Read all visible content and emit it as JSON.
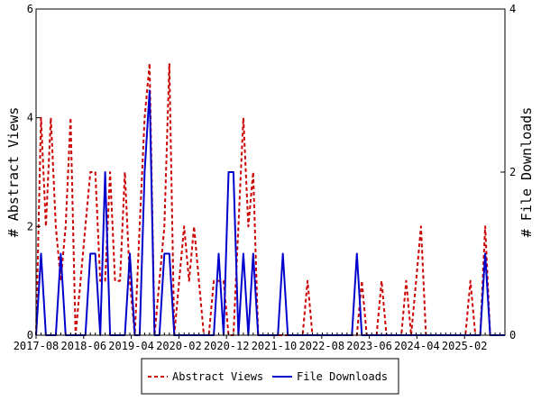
{
  "chart_data": {
    "type": "line",
    "x_tick_labels": [
      "2017-08",
      "2018-06",
      "2019-04",
      "2020-02",
      "2020-12",
      "2021-10",
      "2022-08",
      "2023-06",
      "2024-04",
      "2025-02"
    ],
    "left_axis": {
      "label": "# Abstract Views",
      "ylim": [
        0,
        6
      ],
      "ticks": [
        0,
        2,
        4,
        6
      ]
    },
    "right_axis": {
      "label": "# File Downloads",
      "ylim": [
        0,
        4
      ],
      "ticks": [
        0,
        2,
        4
      ]
    },
    "grid": false,
    "legend_position": "bottom-center",
    "series": [
      {
        "name": "Abstract Views",
        "axis": "left",
        "color": "#cc0000",
        "style": "dashed",
        "values": [
          0,
          4,
          2,
          4,
          2,
          1,
          2,
          4,
          0,
          1,
          2,
          3,
          3,
          1,
          1,
          3,
          1,
          1,
          3,
          1,
          0,
          2,
          4,
          5,
          0,
          1,
          2,
          5,
          0,
          1,
          2,
          1,
          2,
          1,
          0,
          0,
          1,
          1,
          1,
          0,
          0,
          2,
          4,
          2,
          3,
          0,
          0,
          0,
          0,
          0,
          0,
          0,
          0,
          0,
          0,
          1,
          0,
          0,
          0,
          0,
          0,
          0,
          0,
          0,
          0,
          0,
          1,
          0,
          0,
          0,
          1,
          0,
          0,
          0,
          0,
          1,
          0,
          1,
          2,
          0,
          0,
          0,
          0,
          0,
          0,
          0,
          0,
          0,
          1,
          0,
          0,
          2,
          0,
          0,
          0,
          0
        ]
      },
      {
        "name": "File Downloads",
        "axis": "right",
        "color": "#0000cc",
        "style": "solid",
        "values": [
          0,
          1,
          0,
          0,
          0,
          1,
          0,
          0,
          0,
          0,
          0,
          1,
          1,
          0,
          2,
          0,
          0,
          0,
          0,
          1,
          0,
          0,
          2,
          3,
          0,
          0,
          1,
          1,
          0,
          0,
          0,
          0,
          0,
          0,
          0,
          0,
          0,
          1,
          0,
          2,
          2,
          0,
          1,
          0,
          1,
          0,
          0,
          0,
          0,
          0,
          1,
          0,
          0,
          0,
          0,
          0,
          0,
          0,
          0,
          0,
          0,
          0,
          0,
          0,
          0,
          1,
          0,
          0,
          0,
          0,
          0,
          0,
          0,
          0,
          0,
          0,
          0,
          0,
          0,
          0,
          0,
          0,
          0,
          0,
          0,
          0,
          0,
          0,
          0,
          0,
          0,
          1,
          0,
          0,
          0,
          0
        ]
      }
    ]
  }
}
